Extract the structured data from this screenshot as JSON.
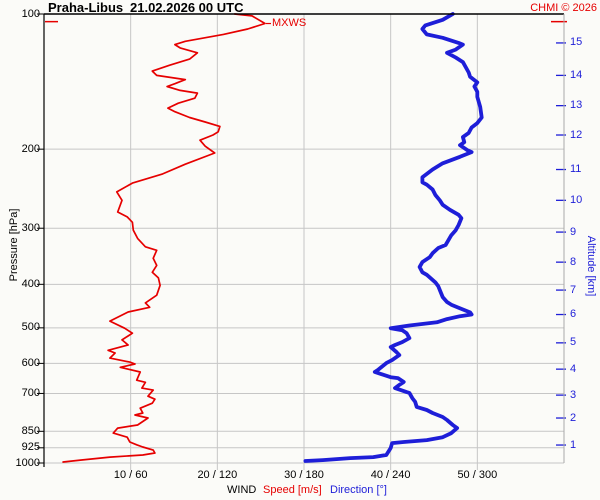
{
  "chart_data": {
    "type": "line",
    "station": "Praha-Libus",
    "datetime": "21.02.2026 00 UTC",
    "copyright": "CHMI © 2026",
    "colors": {
      "speed": "#e60000",
      "direction": "#1e1ed8",
      "grid": "#c6c6c6",
      "frame": "#000000",
      "right_axis": "#aaaaaa",
      "background": "#fbfbf8"
    },
    "y_axis": {
      "label": "Pressure [hPa]",
      "scale": "log",
      "range": [
        100,
        1000
      ],
      "ticks": [
        100,
        200,
        300,
        400,
        500,
        600,
        700,
        850,
        925,
        1000
      ]
    },
    "y2_axis": {
      "label": "Altitude [km]",
      "ticks_km_pressure": [
        [
          1,
          912
        ],
        [
          2,
          794
        ],
        [
          3,
          706
        ],
        [
          4,
          618
        ],
        [
          5,
          540
        ],
        [
          6,
          467
        ],
        [
          7,
          412
        ],
        [
          8,
          357
        ],
        [
          9,
          306
        ],
        [
          10,
          260
        ],
        [
          11,
          222
        ],
        [
          12,
          186
        ],
        [
          13,
          160
        ],
        [
          14,
          137
        ],
        [
          15,
          116
        ]
      ]
    },
    "x_axis": {
      "group_label": "WIND",
      "speed_label": "Speed [m/s]",
      "direction_label": "Direction [°]",
      "speed_range": [
        0,
        60
      ],
      "direction_range": [
        0,
        360
      ],
      "tick_speed_values": [
        10,
        20,
        30,
        40,
        50
      ],
      "tick_labels": [
        "10 / 60",
        "20 / 120",
        "30 / 180",
        "40 / 240",
        "50 / 300"
      ],
      "grid": true
    },
    "annotations": {
      "mxws": {
        "label": "MXWS",
        "pressure": 104,
        "speed": 25.5
      }
    },
    "series": [
      {
        "name": "wind-speed",
        "label": "Speed [m/s]",
        "x_scale": "speed",
        "color": "#e60000",
        "width": 1.7,
        "points": [
          [
            100,
            22
          ],
          [
            101,
            24
          ],
          [
            105,
            25.5
          ],
          [
            108,
            23.5
          ],
          [
            111,
            20.7
          ],
          [
            115,
            16.3
          ],
          [
            117,
            15.1
          ],
          [
            119,
            15.7
          ],
          [
            122,
            17.7
          ],
          [
            126,
            16.8
          ],
          [
            130,
            14.5
          ],
          [
            134,
            12.5
          ],
          [
            137,
            13
          ],
          [
            140,
            16.3
          ],
          [
            143,
            15.1
          ],
          [
            145,
            14.2
          ],
          [
            148,
            15.7
          ],
          [
            150,
            17.7
          ],
          [
            154,
            17.4
          ],
          [
            158,
            15.5
          ],
          [
            162,
            14.3
          ],
          [
            165,
            15.1
          ],
          [
            170,
            16.8
          ],
          [
            174,
            18.6
          ],
          [
            178,
            20.3
          ],
          [
            183,
            20.1
          ],
          [
            186,
            19.5
          ],
          [
            191,
            18
          ],
          [
            197,
            18.6
          ],
          [
            204,
            19.7
          ],
          [
            216,
            16.3
          ],
          [
            227,
            13.7
          ],
          [
            238,
            10.2
          ],
          [
            249,
            8.4
          ],
          [
            260,
            9
          ],
          [
            276,
            8.5
          ],
          [
            283,
            9.6
          ],
          [
            291,
            10.2
          ],
          [
            303,
            10.3
          ],
          [
            316,
            10.8
          ],
          [
            330,
            11.7
          ],
          [
            336,
            13
          ],
          [
            350,
            12.6
          ],
          [
            363,
            13
          ],
          [
            376,
            12.5
          ],
          [
            387,
            13.2
          ],
          [
            402,
            13.4
          ],
          [
            423,
            13
          ],
          [
            440,
            11.7
          ],
          [
            450,
            12.2
          ],
          [
            461,
            9.7
          ],
          [
            483,
            7.6
          ],
          [
            501,
            9.3
          ],
          [
            514,
            10.2
          ],
          [
            532,
            9
          ],
          [
            546,
            9.7
          ],
          [
            561,
            7.4
          ],
          [
            569,
            8.2
          ],
          [
            584,
            7.6
          ],
          [
            596,
            9.9
          ],
          [
            602,
            10.5
          ],
          [
            612,
            8.8
          ],
          [
            627,
            11.1
          ],
          [
            654,
            10.7
          ],
          [
            661,
            11.7
          ],
          [
            681,
            11.3
          ],
          [
            688,
            12.6
          ],
          [
            710,
            12
          ],
          [
            721,
            12.8
          ],
          [
            736,
            12.5
          ],
          [
            755,
            11.1
          ],
          [
            774,
            11.4
          ],
          [
            782,
            10.5
          ],
          [
            794,
            12
          ],
          [
            823,
            10.8
          ],
          [
            836,
            8.5
          ],
          [
            858,
            8
          ],
          [
            876,
            9.6
          ],
          [
            898,
            9.9
          ],
          [
            911,
            10.7
          ],
          [
            921,
            11.4
          ],
          [
            936,
            12.6
          ],
          [
            950,
            12.8
          ],
          [
            960,
            11.4
          ],
          [
            970,
            7.6
          ],
          [
            985,
            4.2
          ],
          [
            995,
            2.2
          ]
        ]
      },
      {
        "name": "wind-direction",
        "label": "Direction [°]",
        "x_scale": "direction",
        "color": "#1e1ed8",
        "width": 3.8,
        "points": [
          [
            100,
            283
          ],
          [
            103,
            276
          ],
          [
            106,
            264
          ],
          [
            108,
            262
          ],
          [
            111,
            265
          ],
          [
            113,
            276
          ],
          [
            116,
            287
          ],
          [
            117,
            290
          ],
          [
            120,
            285
          ],
          [
            122,
            279
          ],
          [
            125,
            285
          ],
          [
            128,
            290
          ],
          [
            135,
            294
          ],
          [
            138,
            295
          ],
          [
            142,
            300
          ],
          [
            145,
            298
          ],
          [
            149,
            300
          ],
          [
            153,
            300
          ],
          [
            161,
            302
          ],
          [
            170,
            303
          ],
          [
            175,
            300
          ],
          [
            179,
            296
          ],
          [
            184,
            294
          ],
          [
            188,
            290
          ],
          [
            193,
            291
          ],
          [
            196,
            288
          ],
          [
            201,
            293
          ],
          [
            203,
            296
          ],
          [
            208,
            288
          ],
          [
            215,
            276
          ],
          [
            222,
            269
          ],
          [
            231,
            262
          ],
          [
            237,
            262
          ],
          [
            240,
            265
          ],
          [
            246,
            269
          ],
          [
            253,
            271
          ],
          [
            260,
            274
          ],
          [
            266,
            276
          ],
          [
            273,
            281
          ],
          [
            280,
            287
          ],
          [
            285,
            289
          ],
          [
            295,
            287
          ],
          [
            303,
            285
          ],
          [
            311,
            282
          ],
          [
            319,
            280
          ],
          [
            327,
            278
          ],
          [
            332,
            273
          ],
          [
            341,
            269
          ],
          [
            348,
            267
          ],
          [
            357,
            262
          ],
          [
            366,
            260
          ],
          [
            376,
            262
          ],
          [
            381,
            265
          ],
          [
            391,
            269
          ],
          [
            396,
            271
          ],
          [
            404,
            273
          ],
          [
            427,
            276
          ],
          [
            438,
            279
          ],
          [
            444,
            282
          ],
          [
            451,
            287
          ],
          [
            462,
            295
          ],
          [
            467,
            296
          ],
          [
            471,
            288
          ],
          [
            478,
            279
          ],
          [
            486,
            272
          ],
          [
            494,
            253
          ],
          [
            501,
            240
          ],
          [
            506,
            248
          ],
          [
            514,
            251
          ],
          [
            527,
            253
          ],
          [
            538,
            248
          ],
          [
            546,
            243
          ],
          [
            552,
            240
          ],
          [
            566,
            244
          ],
          [
            575,
            246
          ],
          [
            590,
            241
          ],
          [
            599,
            237
          ],
          [
            621,
            231
          ],
          [
            627,
            229
          ],
          [
            644,
            240
          ],
          [
            647,
            245
          ],
          [
            660,
            249
          ],
          [
            670,
            246
          ],
          [
            681,
            243
          ],
          [
            695,
            251
          ],
          [
            698,
            253
          ],
          [
            717,
            255
          ],
          [
            731,
            257
          ],
          [
            750,
            258
          ],
          [
            762,
            265
          ],
          [
            774,
            269
          ],
          [
            790,
            276
          ],
          [
            802,
            279
          ],
          [
            823,
            283
          ],
          [
            836,
            286
          ],
          [
            858,
            282
          ],
          [
            876,
            276
          ],
          [
            889,
            265
          ],
          [
            898,
            249
          ],
          [
            903,
            241
          ],
          [
            926,
            240
          ],
          [
            960,
            237
          ],
          [
            970,
            228
          ],
          [
            975,
            212
          ],
          [
            985,
            193
          ],
          [
            990,
            181
          ]
        ]
      }
    ]
  }
}
